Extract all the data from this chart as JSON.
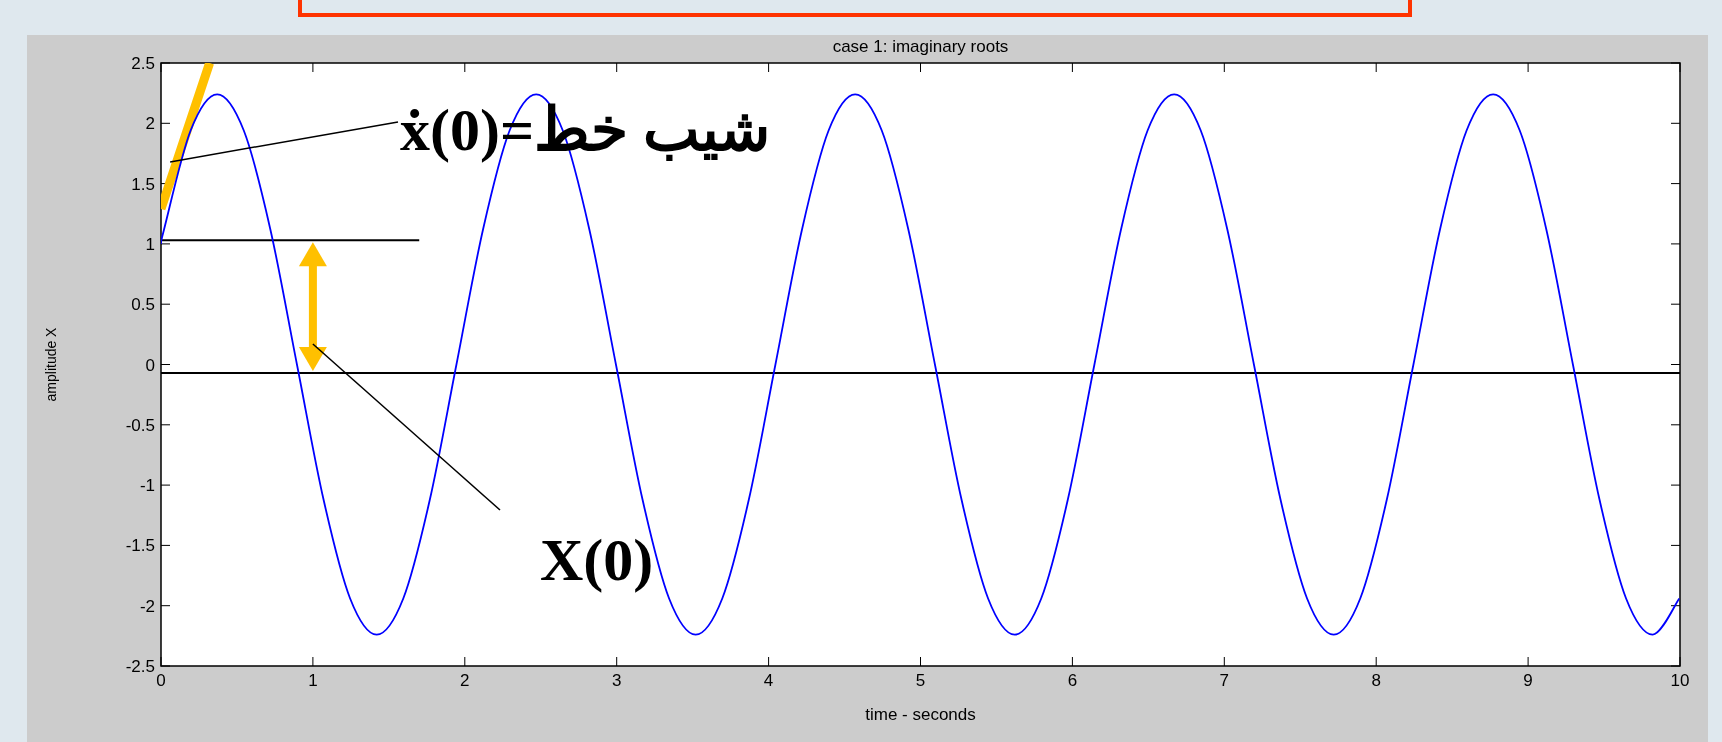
{
  "chart_data": {
    "type": "line",
    "title": "case 1:  imaginary roots",
    "xlabel": "time - seconds",
    "ylabel": "amplitude X",
    "xlim": [
      0,
      10
    ],
    "ylim": [
      -2.5,
      2.5
    ],
    "xticks": [
      0,
      1,
      2,
      3,
      4,
      5,
      6,
      7,
      8,
      9,
      10
    ],
    "yticks": [
      -2.5,
      -2,
      -1.5,
      -1,
      -0.5,
      0,
      0.5,
      1,
      1.5,
      2,
      2.5
    ],
    "grid": false,
    "series": [
      {
        "color": "#0000ff",
        "x": [
          0,
          0.02,
          0.195,
          0.37,
          0.545,
          0.72,
          0.895,
          1.07,
          1.245,
          1.42,
          1.595,
          1.77,
          1.945,
          2.12,
          2.295,
          2.47,
          2.645,
          2.82,
          2.995,
          3.17,
          3.345,
          3.52,
          3.695,
          3.87,
          4.045,
          4.22,
          4.395,
          4.57,
          4.745,
          4.92,
          5.095,
          5.27,
          5.445,
          5.62,
          5.795,
          5.97,
          6.145,
          6.32,
          6.495,
          6.67,
          6.845,
          7.02,
          7.195,
          7.37,
          7.545,
          7.72,
          7.895,
          8.07,
          8.245,
          8.42,
          8.595,
          8.77,
          8.945,
          9.12,
          9.295,
          9.47,
          9.645,
          9.82,
          9.995
        ],
        "values": [
          1.0,
          1.12,
          1.94,
          2.24,
          1.94,
          1.12,
          0,
          -1.12,
          -1.94,
          -2.24,
          -1.94,
          -1.12,
          0,
          1.12,
          1.94,
          2.24,
          1.94,
          1.12,
          0,
          -1.12,
          -1.94,
          -2.24,
          -1.94,
          -1.12,
          0,
          1.12,
          1.94,
          2.24,
          1.94,
          1.12,
          0,
          -1.12,
          -1.94,
          -2.24,
          -1.94,
          -1.12,
          0,
          1.12,
          1.94,
          2.24,
          1.94,
          1.12,
          0,
          -1.12,
          -1.94,
          -2.24,
          -1.94,
          -1.12,
          0,
          1.12,
          1.94,
          2.24,
          1.94,
          1.12,
          0,
          -1.12,
          -1.94,
          -2.24,
          -1.94
        ]
      },
      {
        "color": "#ffc000",
        "x": [
          0,
          0.32
        ],
        "values": [
          1.29,
          2.5
        ]
      },
      {
        "color": "#000000",
        "x": [
          0,
          1.7
        ],
        "values": [
          1.03,
          1.03
        ]
      }
    ],
    "ref_lines": [
      {
        "axis": "y",
        "value": -0.07,
        "color": "#000000"
      }
    ],
    "annotations": [
      {
        "text": "ẋ(0)=شیب خط",
        "x": 0.06,
        "y": 1.68
      },
      "X(0)"
    ]
  }
}
